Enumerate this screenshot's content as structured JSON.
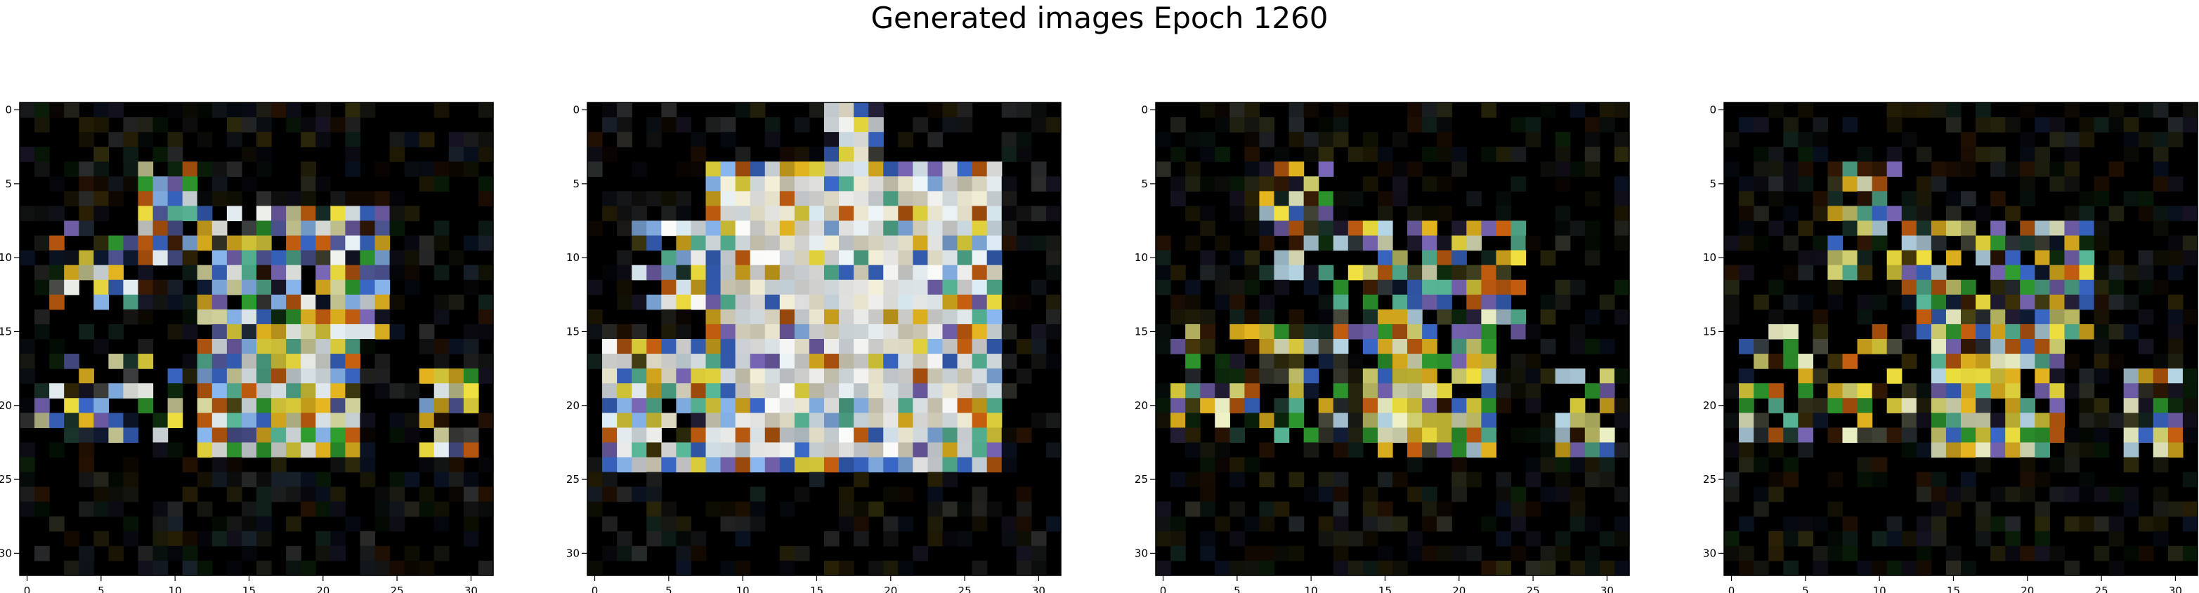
{
  "suptitle": "Generated images Epoch 1260",
  "chart_data": {
    "type": "heatmap",
    "title": "Generated images Epoch 1260",
    "image_shape": [
      32,
      32,
      3
    ],
    "xlim": [
      -0.5,
      31.5
    ],
    "ylim": [
      31.5,
      -0.5
    ],
    "x_ticks": [
      0,
      5,
      10,
      15,
      20,
      25,
      30
    ],
    "y_ticks": [
      0,
      5,
      10,
      15,
      20,
      25,
      30
    ],
    "grid": false,
    "panels": [
      {
        "background": "#000000",
        "blobs": [
          {
            "x0": 8,
            "x1": 11,
            "y0": 4,
            "y1": 10,
            "density": 0.7
          },
          {
            "x0": 12,
            "x1": 24,
            "y0": 7,
            "y1": 15,
            "density": 0.85
          },
          {
            "x0": 12,
            "x1": 22,
            "y0": 15,
            "y1": 23,
            "density": 0.9
          },
          {
            "x0": 15,
            "x1": 20,
            "y0": 17,
            "y1": 23,
            "density": 1.0
          },
          {
            "x0": 27,
            "x1": 30,
            "y0": 18,
            "y1": 23,
            "density": 0.8
          },
          {
            "x0": 1,
            "x1": 10,
            "y0": 17,
            "y1": 22,
            "density": 0.45
          },
          {
            "x0": 2,
            "x1": 8,
            "y0": 8,
            "y1": 13,
            "density": 0.35
          }
        ],
        "palette": [
          "#f5f8f2",
          "#e8f2f6",
          "#f0e040",
          "#e8b820",
          "#3a68c8",
          "#7a68b8",
          "#58b898",
          "#30a030",
          "#c86010",
          "#8ab8f0",
          "#505898",
          "#d8d8a0"
        ],
        "bright_core": {
          "x0": 15,
          "x1": 20,
          "y0": 16,
          "y1": 23
        },
        "speckle_density": 0.5
      },
      {
        "background": "#000000",
        "blobs": [
          {
            "x0": 8,
            "x1": 27,
            "y0": 4,
            "y1": 24,
            "density": 1.0
          },
          {
            "x0": 1,
            "x1": 10,
            "y0": 16,
            "y1": 24,
            "density": 0.9
          },
          {
            "x0": 16,
            "x1": 19,
            "y0": 0,
            "y1": 7,
            "density": 0.8
          },
          {
            "x0": 3,
            "x1": 9,
            "y0": 8,
            "y1": 13,
            "density": 0.7
          }
        ],
        "palette": [
          "#fbfcfa",
          "#eef6fa",
          "#f5f0d8",
          "#e0f0f8",
          "#f0e040",
          "#e8b820",
          "#3a68c8",
          "#7a68b8",
          "#58b898",
          "#8ab8f0",
          "#c86010"
        ],
        "bright_core": {
          "x0": 9,
          "x1": 25,
          "y0": 5,
          "y1": 23
        },
        "speckle_density": 0.45
      },
      {
        "background": "#000000",
        "blobs": [
          {
            "x0": 7,
            "x1": 11,
            "y0": 4,
            "y1": 11,
            "density": 0.6
          },
          {
            "x0": 12,
            "x1": 24,
            "y0": 8,
            "y1": 15,
            "density": 0.6
          },
          {
            "x0": 14,
            "x1": 22,
            "y0": 15,
            "y1": 23,
            "density": 0.85
          },
          {
            "x0": 27,
            "x1": 30,
            "y0": 18,
            "y1": 23,
            "density": 0.7
          },
          {
            "x0": 1,
            "x1": 12,
            "y0": 15,
            "y1": 22,
            "density": 0.35
          }
        ],
        "palette": [
          "#f0f4c8",
          "#f0e040",
          "#e8b820",
          "#3a68c8",
          "#7a68b8",
          "#58b898",
          "#30a030",
          "#c86010",
          "#b8d8e8",
          "#d0d070"
        ],
        "bright_core": {
          "x0": 16,
          "x1": 19,
          "y0": 17,
          "y1": 22
        },
        "speckle_density": 0.5
      },
      {
        "background": "#000000",
        "blobs": [
          {
            "x0": 7,
            "x1": 11,
            "y0": 4,
            "y1": 11,
            "density": 0.6
          },
          {
            "x0": 12,
            "x1": 24,
            "y0": 8,
            "y1": 15,
            "density": 0.6
          },
          {
            "x0": 14,
            "x1": 22,
            "y0": 15,
            "y1": 23,
            "density": 0.85
          },
          {
            "x0": 27,
            "x1": 30,
            "y0": 18,
            "y1": 23,
            "density": 0.7
          },
          {
            "x0": 1,
            "x1": 12,
            "y0": 15,
            "y1": 22,
            "density": 0.35
          }
        ],
        "palette": [
          "#f0f4c8",
          "#f0e040",
          "#e8b820",
          "#3a68c8",
          "#7a68b8",
          "#58b898",
          "#30a030",
          "#c86010",
          "#b8d8e8",
          "#d0d070"
        ],
        "bright_core": {
          "x0": 16,
          "x1": 19,
          "y0": 17,
          "y1": 22
        },
        "speckle_density": 0.5
      }
    ]
  }
}
